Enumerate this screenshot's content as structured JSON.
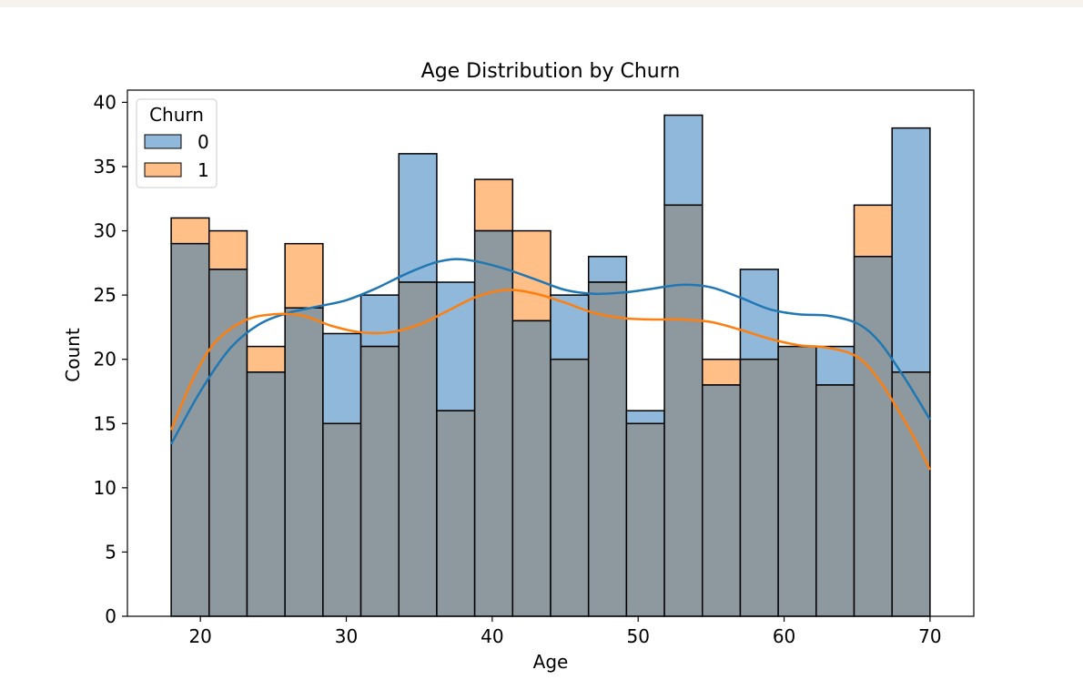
{
  "chart_data": {
    "type": "bar",
    "title": "Age Distribution by Churn",
    "xlabel": "Age",
    "ylabel": "Count",
    "xlim": [
      15,
      73
    ],
    "ylim": [
      0,
      40.95
    ],
    "xticks": [
      20,
      30,
      40,
      50,
      60,
      70
    ],
    "yticks": [
      0,
      5,
      10,
      15,
      20,
      25,
      30,
      35,
      40
    ],
    "bin_edges": [
      18,
      20.6,
      23.2,
      25.8,
      28.4,
      31,
      33.6,
      36.2,
      38.8,
      41.4,
      44,
      46.6,
      49.2,
      51.8,
      54.4,
      57,
      59.6,
      62.2,
      64.8,
      67.4,
      70
    ],
    "legend": {
      "title": "Churn",
      "placement": "top-left"
    },
    "grid": false,
    "series": [
      {
        "name": "0",
        "color": "#1f77b4",
        "fill": "#8fb8da",
        "values": [
          29,
          27,
          19,
          24,
          22,
          25,
          36,
          26,
          30,
          23,
          25,
          28,
          16,
          39,
          18,
          27,
          21,
          21,
          28,
          38
        ],
        "kde": [
          [
            18,
            13.4
          ],
          [
            20,
            17.5
          ],
          [
            22,
            20.8
          ],
          [
            24,
            22.7
          ],
          [
            26,
            23.6
          ],
          [
            28,
            24.1
          ],
          [
            30,
            24.6
          ],
          [
            32,
            25.5
          ],
          [
            34,
            26.6
          ],
          [
            36,
            27.5
          ],
          [
            37.5,
            27.8
          ],
          [
            39,
            27.6
          ],
          [
            41,
            27
          ],
          [
            43,
            26.2
          ],
          [
            45,
            25.4
          ],
          [
            47,
            25.1
          ],
          [
            49,
            25.2
          ],
          [
            51,
            25.5
          ],
          [
            53,
            25.8
          ],
          [
            55,
            25.6
          ],
          [
            57,
            24.8
          ],
          [
            59,
            23.9
          ],
          [
            61,
            23.5
          ],
          [
            63,
            23.4
          ],
          [
            65,
            22.8
          ],
          [
            66.5,
            21.4
          ],
          [
            68,
            19
          ],
          [
            69,
            17.2
          ],
          [
            70,
            15.3
          ]
        ]
      },
      {
        "name": "1",
        "color": "#ff7f0e",
        "fill": "#ffbf86",
        "values": [
          31,
          30,
          21,
          29,
          15,
          21,
          26,
          16,
          34,
          30,
          20,
          26,
          15,
          32,
          20,
          20,
          21,
          18,
          32,
          19
        ],
        "kde": [
          [
            18,
            14.5
          ],
          [
            19.5,
            18.5
          ],
          [
            21,
            21.3
          ],
          [
            23,
            23
          ],
          [
            25,
            23.5
          ],
          [
            27,
            23.4
          ],
          [
            29,
            22.6
          ],
          [
            31,
            22.1
          ],
          [
            33,
            22.1
          ],
          [
            35,
            22.7
          ],
          [
            37,
            23.8
          ],
          [
            39,
            24.9
          ],
          [
            41,
            25.4
          ],
          [
            43,
            25.1
          ],
          [
            45,
            24.4
          ],
          [
            47,
            23.6
          ],
          [
            49,
            23.2
          ],
          [
            51,
            23.1
          ],
          [
            53,
            23.1
          ],
          [
            55,
            22.9
          ],
          [
            57,
            22.3
          ],
          [
            59,
            21.6
          ],
          [
            61,
            21.1
          ],
          [
            63,
            20.9
          ],
          [
            65,
            20.2
          ],
          [
            66.5,
            18.4
          ],
          [
            68,
            15.7
          ],
          [
            69,
            13.7
          ],
          [
            70,
            11.4
          ]
        ]
      }
    ]
  }
}
